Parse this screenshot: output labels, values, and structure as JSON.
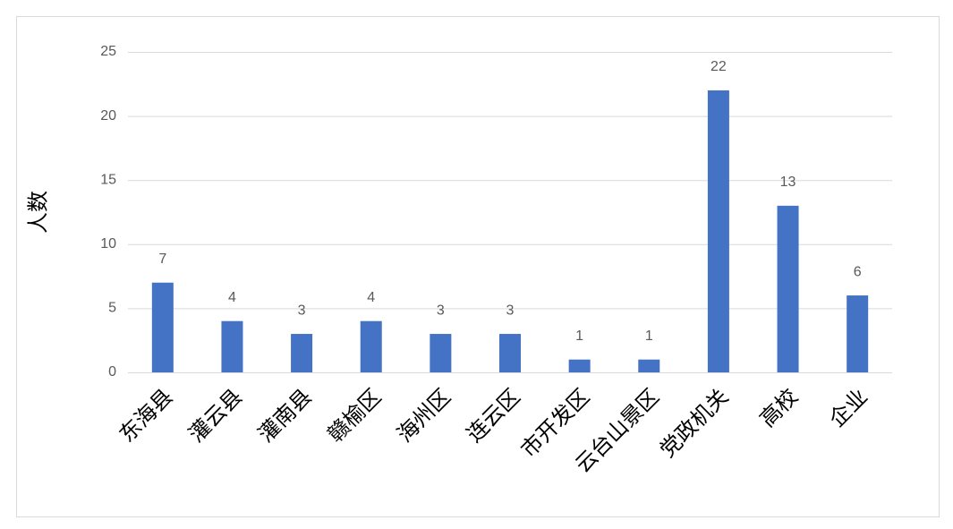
{
  "chart_data": {
    "type": "bar",
    "y_label": "人数",
    "categories": [
      "东海县",
      "灌云县",
      "灌南县",
      "赣榆区",
      "海州区",
      "连云区",
      "市开发区",
      "云台山景区",
      "党政机关",
      "高校",
      "企业"
    ],
    "values": [
      7,
      4,
      3,
      4,
      3,
      3,
      1,
      1,
      22,
      13,
      6
    ],
    "color": "#4472c4",
    "ylim": [
      0,
      25
    ],
    "yticks": [
      0,
      5,
      10,
      15,
      20,
      25
    ],
    "grid": true
  }
}
